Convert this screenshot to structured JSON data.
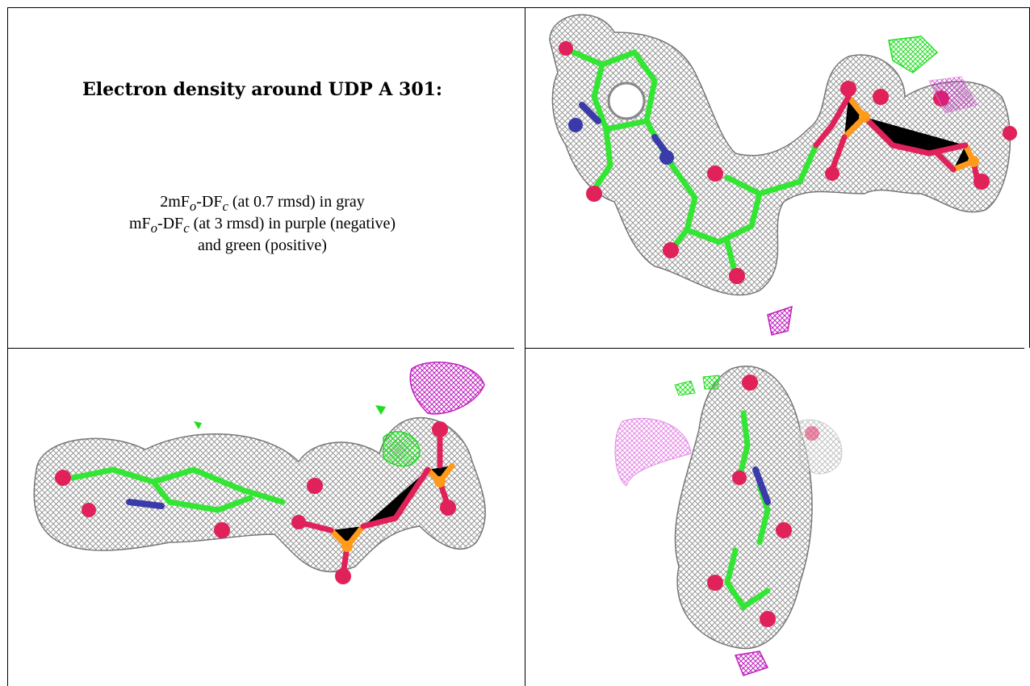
{
  "caption": {
    "title": "Electron density around UDP A 301:",
    "line1": {
      "pre": "2mF",
      "sub1": "o",
      "mid": "-DF",
      "sub2": "c",
      "post": " (at 0.7 rmsd) in gray"
    },
    "line2": {
      "pre": "mF",
      "sub1": "o",
      "mid": "-DF",
      "sub2": "c",
      "post": " (at 3 rmsd) in purple (negative)"
    },
    "line3": "and green (positive)"
  },
  "colors": {
    "mesh_gray": "#9a9a9a",
    "carbon_green": "#33e633",
    "oxygen_red": "#e0215a",
    "nitrogen_blue": "#3a3aaa",
    "phosphorus_orange": "#ff9a1a",
    "negative_purple": "#c020c0",
    "positive_green": "#22dd22"
  },
  "panels": [
    {
      "view": "top-view"
    },
    {
      "view": "side-view"
    },
    {
      "view": "end-view"
    }
  ]
}
